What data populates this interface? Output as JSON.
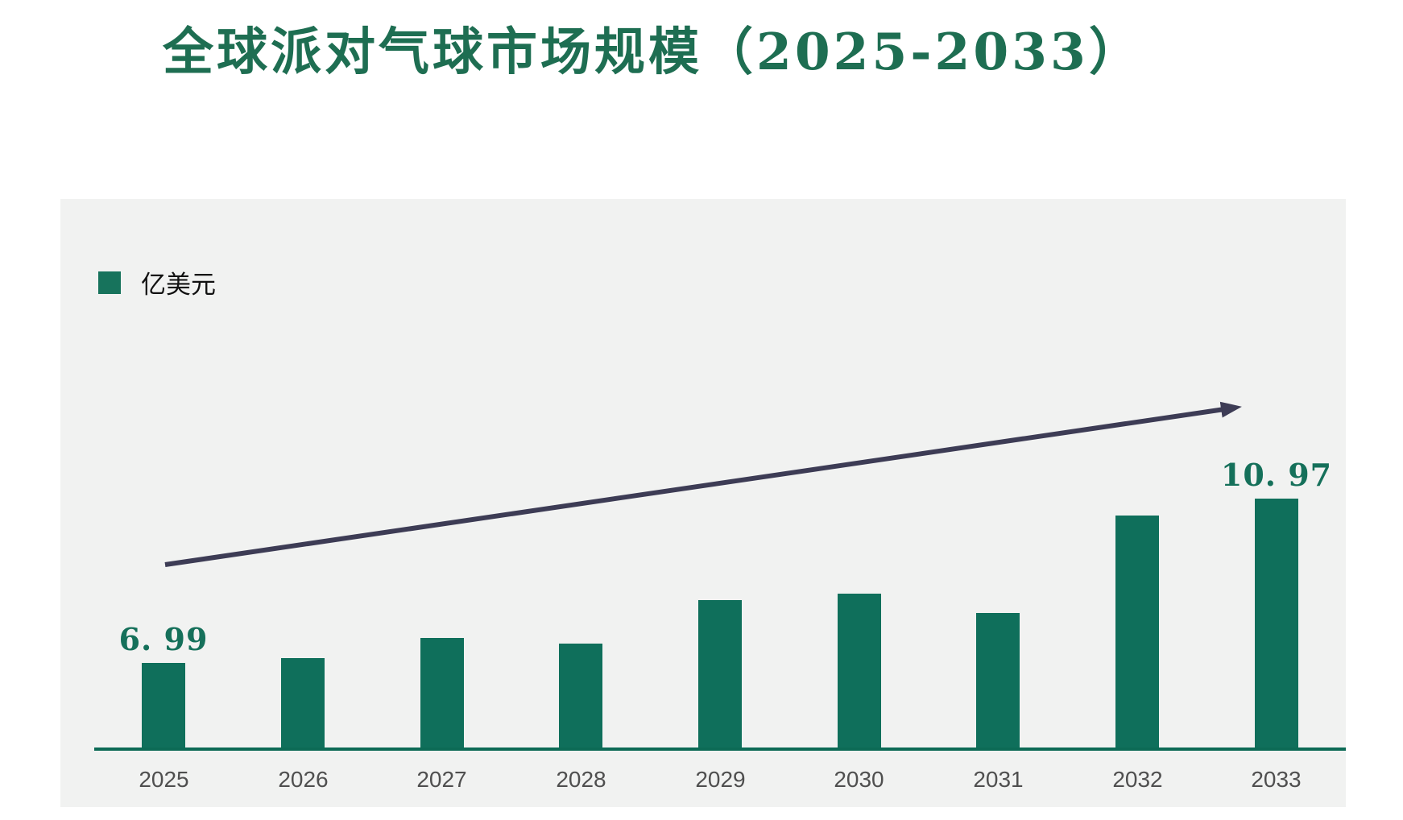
{
  "title": {
    "text": "全球派对气球市场规模（2025-2033）",
    "color": "#1e6e52"
  },
  "legend": {
    "label": "亿美元",
    "swatch_color": "#17735c"
  },
  "chart_data": {
    "type": "bar",
    "title": "全球派对气球市场规模（2025-2033）",
    "unit": "亿美元",
    "categories": [
      "2025",
      "2026",
      "2027",
      "2028",
      "2029",
      "2030",
      "2031",
      "2032",
      "2033"
    ],
    "values": [
      6.99,
      7.1,
      7.6,
      7.45,
      8.5,
      8.67,
      8.2,
      10.55,
      10.97
    ],
    "point_labels": [
      {
        "index": 0,
        "text": "6. 99"
      },
      {
        "index": 8,
        "text": "10. 97"
      }
    ],
    "xlabel": "",
    "ylabel": "亿美元",
    "ylim": [
      4.94,
      13.0
    ],
    "grid": false,
    "legend_position": "top-left",
    "annotations": [
      {
        "type": "trend-arrow",
        "from_category": "2025",
        "to_category": "2033",
        "direction": "up"
      }
    ],
    "colors": {
      "bar": "#0f6f5b",
      "axis_line": "#0c6a55",
      "data_label": "#15705a",
      "tick_label": "#4f4f4f",
      "panel_background": "#f1f2f1",
      "trend_arrow": "#3d3c55"
    }
  }
}
